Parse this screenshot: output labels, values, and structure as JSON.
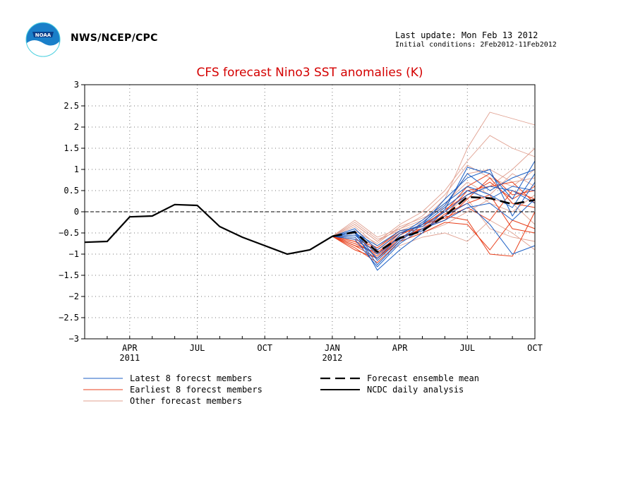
{
  "header": {
    "agency": "NWS/NCEP/CPC",
    "last_update": "Last update: Mon Feb 13 2012",
    "initial_conditions": "Initial conditions: 2Feb2012-11Feb2012",
    "logo_text": "NOAA"
  },
  "colors": {
    "latest": "#1c5fc4",
    "earliest": "#e8401c",
    "other": "#e0a090",
    "title": "#d40000",
    "analysis": "#000000"
  },
  "chart_data": {
    "type": "line",
    "title": "CFS forecast Nino3 SST anomalies (K)",
    "ylim": [
      -3,
      3
    ],
    "xlim": [
      0,
      20
    ],
    "yticks": [
      "3",
      "2.5",
      "2",
      "1.5",
      "1",
      "0.5",
      "0",
      "−0.5",
      "−1",
      "−1.5",
      "−2",
      "−2.5",
      "−3"
    ],
    "xticks": [
      {
        "label": "APR",
        "sub": "2011",
        "x": 2
      },
      {
        "label": "JUL",
        "sub": "",
        "x": 5
      },
      {
        "label": "OCT",
        "sub": "",
        "x": 8
      },
      {
        "label": "JAN",
        "sub": "2012",
        "x": 11
      },
      {
        "label": "APR",
        "sub": "",
        "x": 14
      },
      {
        "label": "JUL",
        "sub": "",
        "x": 17
      },
      {
        "label": "OCT",
        "sub": "",
        "x": 20
      }
    ],
    "grid": true,
    "legend": [
      {
        "label": "Latest 8 forecst members",
        "key": "latest",
        "style": "thin"
      },
      {
        "label": "Earliest 8 forecst members",
        "key": "earliest",
        "style": "thin"
      },
      {
        "label": "Other forecast members",
        "key": "other",
        "style": "thin"
      },
      {
        "label": "Forecast ensemble mean",
        "key": "analysis",
        "style": "dashed"
      },
      {
        "label": "NCDC daily analysis",
        "key": "analysis",
        "style": "solid"
      }
    ],
    "analysis": {
      "x": [
        0,
        1,
        2,
        3,
        4,
        5,
        6,
        7,
        8,
        9,
        10,
        11
      ],
      "y": [
        -0.72,
        -0.7,
        -0.12,
        -0.1,
        0.17,
        0.15,
        -0.35,
        -0.6,
        -0.8,
        -1.0,
        -0.9,
        -0.58
      ]
    },
    "ensemble_mean": {
      "x": [
        11,
        12,
        13,
        14,
        15,
        16,
        17,
        18,
        19,
        20
      ],
      "y": [
        -0.58,
        -0.48,
        -0.95,
        -0.62,
        -0.45,
        -0.1,
        0.35,
        0.32,
        0.18,
        0.28
      ]
    },
    "members": {
      "x": [
        11,
        12,
        13,
        14,
        15,
        16,
        17,
        18,
        19,
        20
      ],
      "latest": [
        [
          -0.58,
          -0.45,
          -1.38,
          -0.9,
          -0.5,
          0.05,
          1.05,
          0.9,
          0.3,
          1.2
        ],
        [
          -0.58,
          -0.5,
          -1.25,
          -0.7,
          -0.3,
          0.3,
          0.8,
          1.0,
          -0.1,
          0.7
        ],
        [
          -0.58,
          -0.6,
          -1.1,
          -0.55,
          -0.2,
          0.2,
          0.6,
          0.4,
          0.1,
          0.9
        ],
        [
          -0.58,
          -0.55,
          -1.0,
          -0.6,
          -0.45,
          -0.1,
          0.2,
          -0.3,
          -1.0,
          -0.8
        ],
        [
          -0.58,
          -0.4,
          -0.9,
          -0.5,
          -0.3,
          0.1,
          0.5,
          0.3,
          0.6,
          0.5
        ],
        [
          -0.58,
          -0.65,
          -1.3,
          -0.75,
          -0.4,
          -0.2,
          0.1,
          0.2,
          -0.2,
          0.3
        ],
        [
          -0.58,
          -0.5,
          -0.8,
          -0.45,
          -0.35,
          0.0,
          0.4,
          0.6,
          0.5,
          0.2
        ],
        [
          -0.58,
          -0.45,
          -1.15,
          -0.65,
          -0.25,
          0.15,
          0.9,
          0.5,
          0.8,
          1.0
        ]
      ],
      "earliest": [
        [
          -0.58,
          -0.7,
          -0.9,
          -0.5,
          -0.4,
          -0.2,
          0.3,
          0.8,
          0.2,
          0.1
        ],
        [
          -0.58,
          -0.8,
          -1.1,
          -0.6,
          -0.4,
          -0.1,
          -0.2,
          -1.0,
          -1.05,
          0.0
        ],
        [
          -0.58,
          -0.75,
          -1.0,
          -0.5,
          -0.3,
          0.0,
          0.6,
          0.9,
          0.4,
          0.5
        ],
        [
          -0.58,
          -0.85,
          -1.2,
          -0.7,
          -0.5,
          -0.25,
          -0.3,
          -0.9,
          -0.2,
          -0.4
        ],
        [
          -0.58,
          -0.65,
          -0.85,
          -0.45,
          -0.35,
          0.05,
          0.4,
          0.7,
          0.3,
          0.6
        ],
        [
          -0.58,
          -0.7,
          -1.05,
          -0.55,
          -0.3,
          -0.15,
          0.1,
          -0.2,
          0.5,
          0.3
        ],
        [
          -0.58,
          -0.8,
          -0.95,
          -0.6,
          -0.45,
          -0.05,
          0.2,
          0.4,
          -0.4,
          -0.5
        ],
        [
          -0.58,
          -0.9,
          -1.1,
          -0.65,
          -0.4,
          -0.1,
          0.5,
          0.6,
          0.7,
          0.2
        ]
      ],
      "other": [
        [
          -0.58,
          -0.2,
          -0.6,
          -0.4,
          -0.2,
          0.3,
          1.5,
          2.35,
          2.2,
          2.05
        ],
        [
          -0.58,
          -0.3,
          -0.7,
          -0.3,
          0.0,
          0.5,
          1.2,
          1.8,
          1.5,
          1.3
        ],
        [
          -0.58,
          -0.35,
          -0.8,
          -0.5,
          -0.3,
          -0.1,
          0.4,
          0.6,
          1.0,
          1.5
        ],
        [
          -0.58,
          -0.5,
          -1.0,
          -0.8,
          -0.6,
          -0.5,
          -0.7,
          -0.2,
          -0.5,
          -0.9
        ],
        [
          -0.58,
          -0.4,
          -0.9,
          -0.6,
          -0.4,
          0.0,
          0.6,
          0.2,
          0.0,
          0.4
        ],
        [
          -0.58,
          -0.45,
          -0.75,
          -0.35,
          -0.15,
          0.1,
          0.9,
          1.0,
          0.7,
          0.8
        ],
        [
          -0.58,
          -0.6,
          -1.1,
          -0.7,
          -0.5,
          -0.3,
          0.0,
          0.3,
          0.2,
          -0.3
        ],
        [
          -0.58,
          -0.25,
          -0.65,
          -0.45,
          -0.25,
          0.2,
          0.7,
          0.4,
          0.9,
          0.6
        ],
        [
          -0.58,
          -0.55,
          -0.85,
          -0.5,
          -0.35,
          -0.2,
          0.3,
          -0.4,
          -0.6,
          -0.7
        ],
        [
          -0.58,
          -0.3,
          -0.7,
          -0.4,
          -0.1,
          0.4,
          1.1,
          0.8,
          0.6,
          1.0
        ]
      ]
    }
  }
}
